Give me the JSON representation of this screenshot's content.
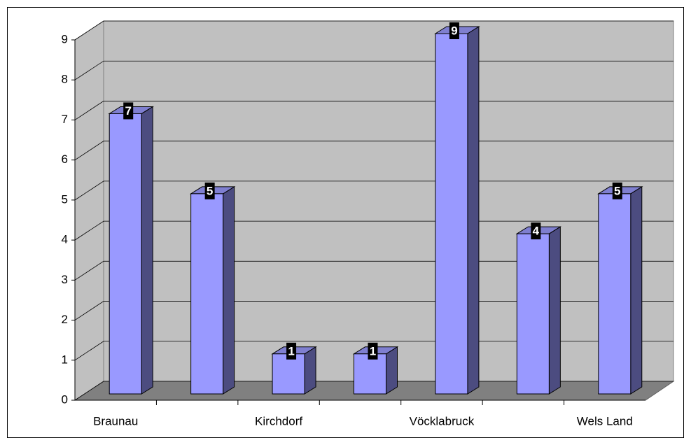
{
  "chart_data": {
    "type": "bar3d",
    "categories": [
      "Braunau",
      null,
      "Kirchdorf",
      null,
      "Vöcklabruck",
      null,
      "Wels Land"
    ],
    "values": [
      7,
      5,
      1,
      1,
      9,
      4,
      5
    ],
    "color": "#9999ff",
    "ylim": [
      0,
      9
    ],
    "yticks": [
      0,
      1,
      2,
      3,
      4,
      5,
      6,
      7,
      8,
      9
    ],
    "grid": true
  }
}
